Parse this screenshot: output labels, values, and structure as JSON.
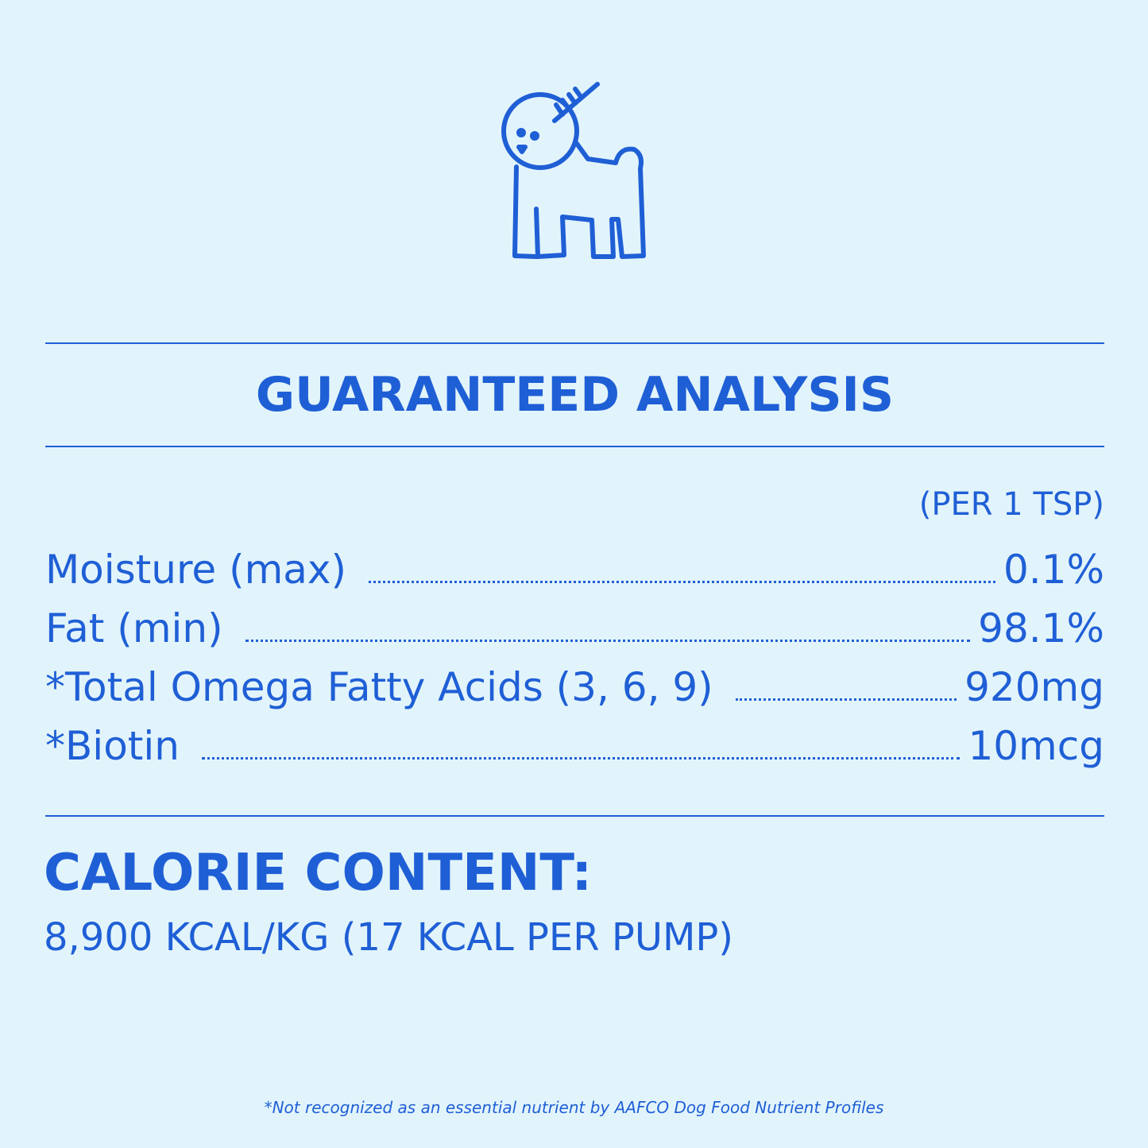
{
  "colors": {
    "background": "#e2f4fb",
    "accent": "#1f5fd6"
  },
  "illustration": {
    "icon": "poodle-with-comb-icon"
  },
  "title": "GUARANTEED ANALYSIS",
  "per_label": "(PER 1 TSP)",
  "rows": [
    {
      "label": "Moisture (max)",
      "value": "0.1%"
    },
    {
      "label": "Fat (min)",
      "value": "98.1%"
    },
    {
      "label": "*Total Omega Fatty Acids (3, 6, 9)",
      "value": "920mg"
    },
    {
      "label": "*Biotin",
      "value": "10mcg"
    }
  ],
  "calorie": {
    "heading": "CALORIE CONTENT:",
    "value": "8,900 KCAL/KG (17 KCAL PER PUMP)"
  },
  "footnote": "*Not recognized as an essential nutrient by AAFCO Dog Food Nutrient Profiles"
}
